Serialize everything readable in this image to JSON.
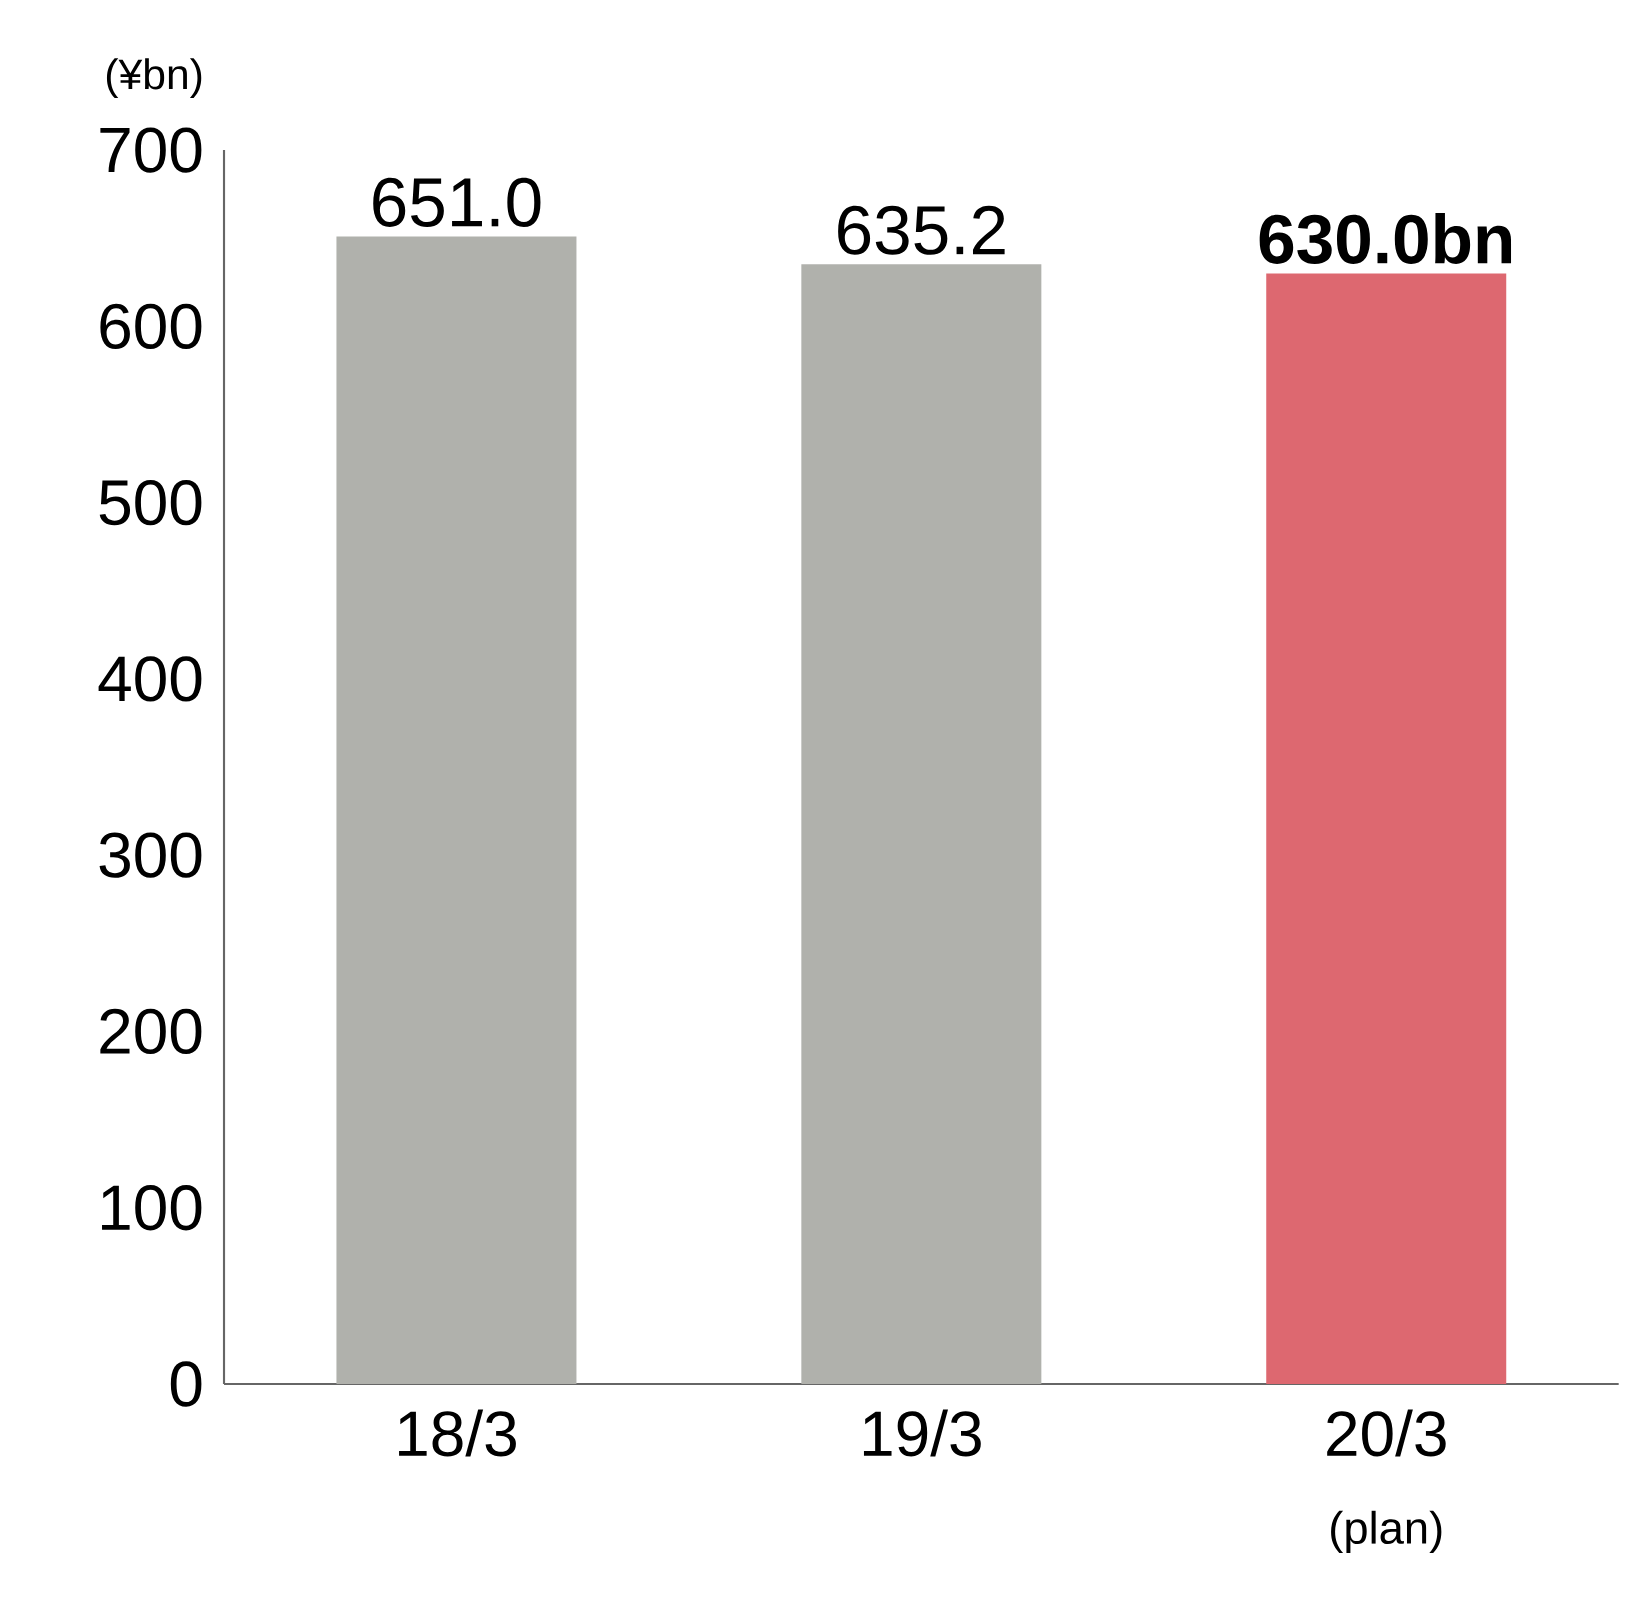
{
  "chart_data": {
    "type": "bar",
    "ylabel": "(¥bn)",
    "categories": [
      "18/3",
      "19/3",
      "20/3"
    ],
    "values": [
      651.0,
      635.2,
      630.0
    ],
    "value_labels": [
      "651.0",
      "635.2",
      "630.0bn"
    ],
    "colors": [
      "#b0b1ac",
      "#b0b1ac",
      "#dd6870"
    ],
    "ylim": [
      0,
      700
    ],
    "yticks": [
      0,
      100,
      200,
      300,
      400,
      500,
      600,
      700
    ],
    "annotations": [
      "(plan)"
    ],
    "grid": false
  }
}
